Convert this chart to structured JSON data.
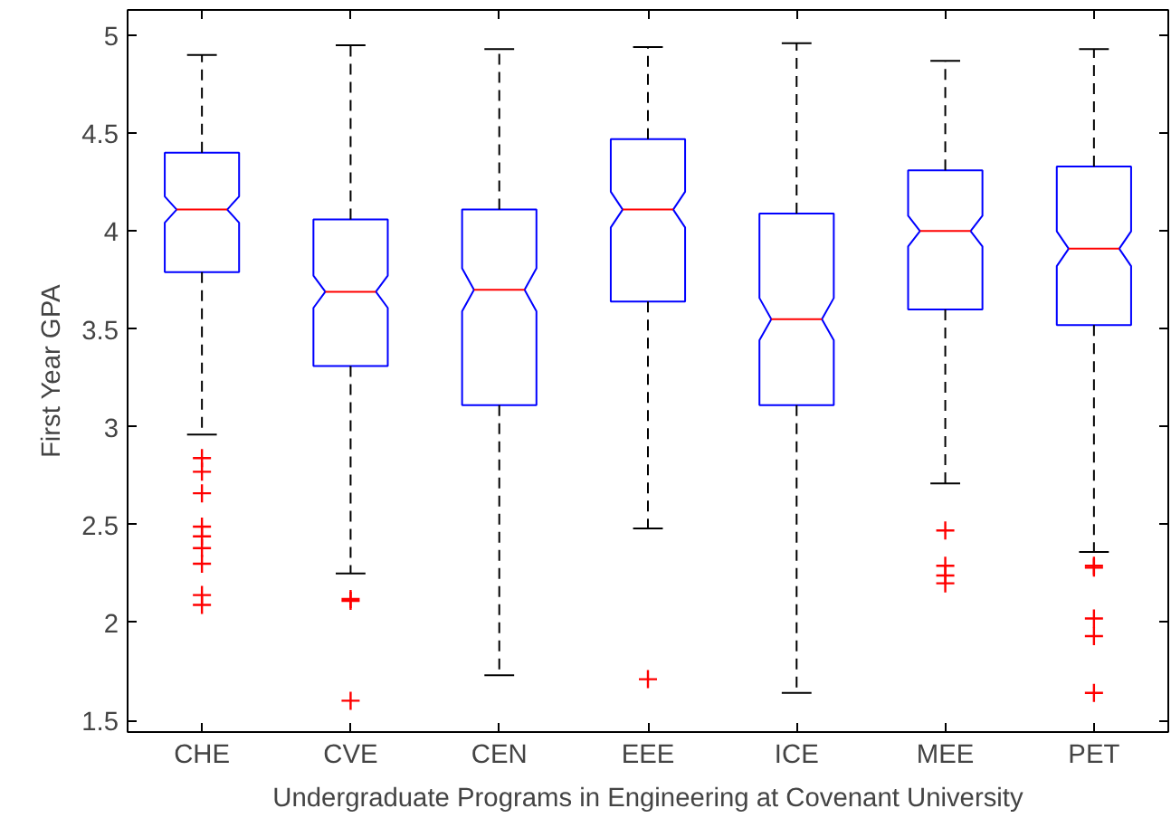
{
  "chart_data": {
    "type": "box",
    "xlabel": "Undergraduate Programs in Engineering at Covenant University",
    "ylabel": "First Year GPA",
    "categories": [
      "CHE",
      "CVE",
      "CEN",
      "EEE",
      "ICE",
      "MEE",
      "PET"
    ],
    "ylim": [
      1.44,
      5.13
    ],
    "yticks": [
      1.5,
      2,
      2.5,
      3,
      3.5,
      4,
      4.5,
      5
    ],
    "grid": false,
    "color": "#0000ff",
    "boxes": [
      {
        "low": 2.96,
        "q1": 3.79,
        "median": 4.11,
        "q3": 4.4,
        "high": 4.9,
        "outliers": [
          2.84,
          2.77,
          2.66,
          2.49,
          2.44,
          2.38,
          2.3,
          2.14,
          2.09
        ]
      },
      {
        "low": 2.25,
        "q1": 3.31,
        "median": 3.69,
        "q3": 4.06,
        "high": 4.95,
        "outliers": [
          2.12,
          2.11,
          1.6
        ]
      },
      {
        "low": 1.73,
        "q1": 3.11,
        "median": 3.7,
        "q3": 4.11,
        "high": 4.93
      },
      {
        "low": 2.48,
        "q1": 3.64,
        "median": 4.11,
        "q3": 4.47,
        "high": 4.94,
        "outliers": [
          1.71
        ]
      },
      {
        "low": 1.64,
        "q1": 3.11,
        "median": 3.55,
        "q3": 4.09,
        "high": 4.96
      },
      {
        "low": 2.71,
        "q1": 3.6,
        "median": 4.0,
        "q3": 4.31,
        "high": 4.87,
        "outliers": [
          2.47,
          2.29,
          2.24,
          2.2
        ]
      },
      {
        "low": 2.36,
        "q1": 3.52,
        "median": 3.91,
        "q3": 4.33,
        "high": 4.93,
        "outliers": [
          2.29,
          2.28,
          2.02,
          1.93,
          1.64
        ]
      }
    ]
  }
}
